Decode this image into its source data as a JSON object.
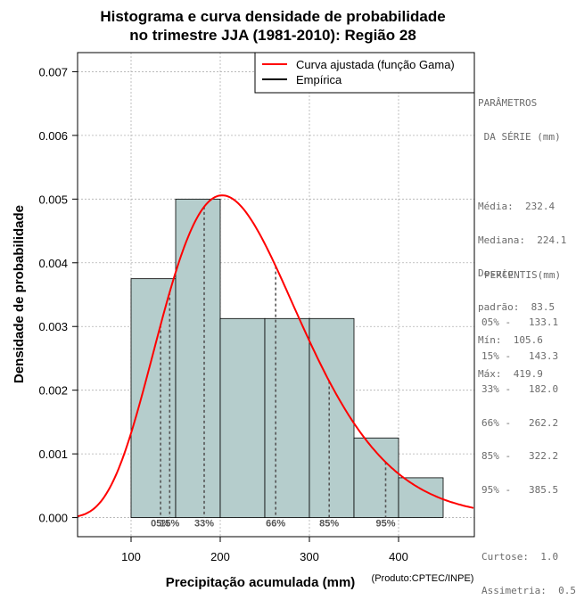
{
  "chart_data": {
    "type": "histogram",
    "title": [
      "Histograma e curva densidade de probabilidade",
      "no trimestre JJA (1981-2010): Região 28"
    ],
    "xlabel": "Precipitação acumulada (mm)",
    "ylabel": "Densidade de probabilidade",
    "credit": "(Produto:CPTEC/INPE)",
    "xlim": [
      40,
      485
    ],
    "ylim": [
      -0.0003,
      0.0073
    ],
    "xticks": [
      100,
      200,
      300,
      400
    ],
    "yticks": [
      0.0,
      0.001,
      0.002,
      0.003,
      0.004,
      0.005,
      0.006,
      0.007
    ],
    "ytick_labels": [
      "0.000",
      "0.001",
      "0.002",
      "0.003",
      "0.004",
      "0.005",
      "0.006",
      "0.007"
    ],
    "grid": true,
    "bins": [
      {
        "from": 100,
        "to": 150,
        "density": 0.00375
      },
      {
        "from": 150,
        "to": 200,
        "density": 0.005
      },
      {
        "from": 200,
        "to": 250,
        "density": 0.003125
      },
      {
        "from": 250,
        "to": 300,
        "density": 0.003125
      },
      {
        "from": 300,
        "to": 350,
        "density": 0.003125
      },
      {
        "from": 350,
        "to": 400,
        "density": 0.00125
      },
      {
        "from": 400,
        "to": 450,
        "density": 0.000625
      }
    ],
    "gamma_fit": {
      "shape": 7.74,
      "scale": 30.0
    },
    "percentile_lines": [
      {
        "label": "05%",
        "value": 133.1
      },
      {
        "label": "15%",
        "value": 143.3
      },
      {
        "label": "33%",
        "value": 182.0
      },
      {
        "label": "66%",
        "value": 262.2
      },
      {
        "label": "85%",
        "value": 322.2
      },
      {
        "label": "95%",
        "value": 385.5
      }
    ],
    "legend": [
      {
        "label": "Curva ajustada (função Gama)",
        "color": "#ff0000"
      },
      {
        "label": "Empírica",
        "color": "#000000"
      }
    ],
    "legend_position": "top-right"
  },
  "colors": {
    "bar_fill": "#b5cdcc",
    "curve": "#ff0000",
    "grid": "#b0b0b0",
    "percentile_text": "#555555"
  },
  "parameters": {
    "heading": [
      "PARÂMETROS",
      " DA SÉRIE (mm)"
    ],
    "media": "Média:  232.4",
    "mediana": "Mediana:  224.1",
    "desvio_1": "Desvio",
    "desvio_2": "padrão:  83.5",
    "min": "Mín:  105.6",
    "max": "Máx:  419.9"
  },
  "percentis": {
    "heading": "PERCENTIS(mm)",
    "lines": [
      "05% -   133.1",
      "15% -   143.3",
      "33% -   182.0",
      "66% -   262.2",
      "85% -   322.2",
      "95% -   385.5"
    ]
  },
  "stats": {
    "curtose": "Curtose:  1.0",
    "assimetria": "Assimetria:  0.5"
  }
}
